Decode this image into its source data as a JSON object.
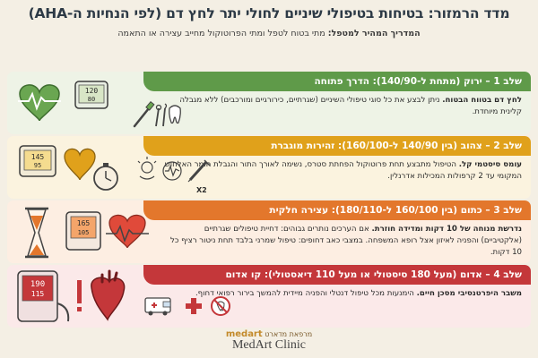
{
  "header": {
    "title": "מדד הרמזור: בטיחות בטיפולי שיניים לחולי יתר לחץ דם (לפי הנחיות ה-AHA)",
    "subtitle_bold": "המדריך המהיר למטפל:",
    "subtitle_rest": " מתי בטוח לטפל ומתי הפרוטוקול מחייב עצירה או התאמה"
  },
  "stages": [
    {
      "heading": "שלב 1 – ירוק (מתחת ל-140/90): הדרך פתוחה",
      "text_bold": "לחץ דם בטווח הבטוח.",
      "text_rest": " ניתן לבצע את כל סוגי טיפולי השיניים (שגרתיים, כירורגיים ומורכבים) ללא מגבלה קלינית מיוחדת.",
      "color": "#5f9a49",
      "icons": [
        "heart-ecg-icon",
        "bp-monitor-icon",
        "toothbrush-icon",
        "dental-tools-icon",
        "tooth-icon"
      ],
      "monitor_top": "120",
      "monitor_bottom": "80"
    },
    {
      "heading": "שלב 2 – צהוב (בין 140/90 ל-160/100): זהירות מוגברת",
      "text_bold": "עומס סיסטמי קל.",
      "text_rest": " הטיפול מתבצע תחת פרוטוקול הפחתת סטרס, נשימה לאורך התור והגבלת חומר האלחוש המקומי עד 2 קרפולות המכילות אדרנלין.",
      "color": "#e0a11b",
      "icons": [
        "bp-monitor-icon",
        "heart-icon",
        "stopwatch-icon",
        "calm-icon",
        "pulse-icon",
        "syringe-icon"
      ],
      "monitor_top": "145",
      "monitor_bottom": "95",
      "syringe_label": "X2"
    },
    {
      "heading": "שלב 3 – כתום (בין 160/100 ל-180/110): עצירה חלקית",
      "text_bold": "נדרשת מנוחה של 10 דקות ומדידה חוזרת.",
      "text_rest": " אם הערכים נותרים גבוהים: דחיית טיפולים שגרתיים (אלקטיביים) והפניה לאיזון אצל רופא המשפחה. במצבי כאב דחופים: טיפול שמרני בלבד תחת ניטור רציף כל 10 דקות.",
      "color": "#e3772c",
      "icons": [
        "hourglass-icon",
        "bp-monitor-icon",
        "heart-ecg-icon"
      ],
      "monitor_top": "165",
      "monitor_bottom": "105"
    },
    {
      "heading": "שלב 4 – אדום (מעל 180 סיסטולי או מעל 110 דיאסטולי): קו אדום",
      "text_bold": "משבר היפרטנסיבי מסכן חיים.",
      "text_rest": " הימנעות מכל טיפול דנטלי והפניה מיידית להמשך בירור רפואי דחוף.",
      "color": "#c4373a",
      "icons": [
        "bp-monitor-icon",
        "warning-icon",
        "anatomical-heart-icon",
        "ambulance-icon",
        "medical-cross-icon",
        "no-treatment-icon"
      ],
      "monitor_top": "190",
      "monitor_bottom": "115"
    }
  ],
  "footer": {
    "brand_small_logo": "medart",
    "brand_small_text": "מרפאת מדארט",
    "brand_name": "MedArt Clinic"
  }
}
